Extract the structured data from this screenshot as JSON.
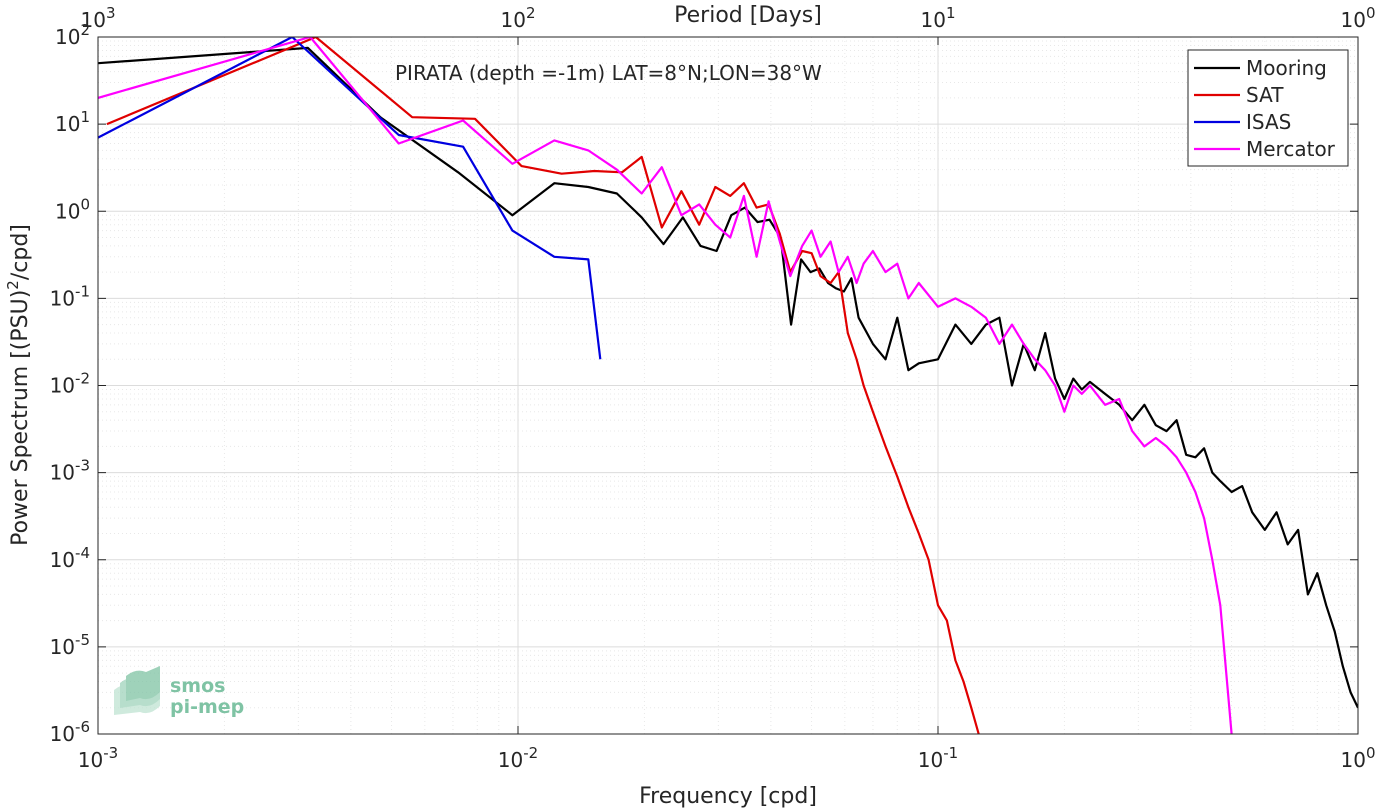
{
  "chart_data": {
    "type": "line",
    "title": "PIRATA (depth =-1m) LAT=8°N;LON=38°W",
    "xlabel": "Frequency [cpd]",
    "ylabel": "Power Spectrum [(PSU)²/cpd]",
    "ylabel_parts": {
      "pre": "Power Spectrum [(PSU)",
      "sup": "2",
      "post": "/cpd]"
    },
    "top_xlabel": "Period [Days]",
    "x_scale": "log",
    "y_scale": "log",
    "xlim": [
      0.001,
      1
    ],
    "ylim": [
      1e-06,
      100
    ],
    "grid": true,
    "legend_position": "top-right",
    "x_ticks": [
      {
        "value": 0.001,
        "base": "10",
        "exp": "-3"
      },
      {
        "value": 0.01,
        "base": "10",
        "exp": "-2"
      },
      {
        "value": 0.1,
        "base": "10",
        "exp": "-1"
      },
      {
        "value": 1,
        "base": "10",
        "exp": "0"
      }
    ],
    "y_ticks": [
      {
        "value": 1e-06,
        "base": "10",
        "exp": "-6"
      },
      {
        "value": 1e-05,
        "base": "10",
        "exp": "-5"
      },
      {
        "value": 0.0001,
        "base": "10",
        "exp": "-4"
      },
      {
        "value": 0.001,
        "base": "10",
        "exp": "-3"
      },
      {
        "value": 0.01,
        "base": "10",
        "exp": "-2"
      },
      {
        "value": 0.1,
        "base": "10",
        "exp": "-1"
      },
      {
        "value": 1,
        "base": "10",
        "exp": "0"
      },
      {
        "value": 10,
        "base": "10",
        "exp": "1"
      },
      {
        "value": 100,
        "base": "10",
        "exp": "2"
      }
    ],
    "top_ticks": [
      {
        "value": 0.001,
        "base": "10",
        "exp": "3"
      },
      {
        "value": 0.01,
        "base": "10",
        "exp": "2"
      },
      {
        "value": 0.1,
        "base": "10",
        "exp": "1"
      },
      {
        "value": 1,
        "base": "10",
        "exp": "0"
      }
    ],
    "series": [
      {
        "name": "Mooring",
        "color": "#000000",
        "x": [
          0.001,
          0.00316,
          0.0047,
          0.0072,
          0.0097,
          0.0122,
          0.0147,
          0.0172,
          0.0197,
          0.0222,
          0.0247,
          0.0272,
          0.0297,
          0.0322,
          0.0347,
          0.0372,
          0.0397,
          0.0422,
          0.0447,
          0.0472,
          0.0497,
          0.0522,
          0.0547,
          0.0572,
          0.0597,
          0.0622,
          0.0647,
          0.07,
          0.075,
          0.08,
          0.085,
          0.09,
          0.1,
          0.11,
          0.12,
          0.13,
          0.14,
          0.15,
          0.16,
          0.17,
          0.18,
          0.19,
          0.2,
          0.21,
          0.22,
          0.23,
          0.25,
          0.27,
          0.29,
          0.31,
          0.33,
          0.35,
          0.37,
          0.39,
          0.41,
          0.43,
          0.45,
          0.47,
          0.5,
          0.53,
          0.56,
          0.6,
          0.64,
          0.68,
          0.72,
          0.76,
          0.8,
          0.84,
          0.88,
          0.92,
          0.96,
          1.0
        ],
        "y": [
          50,
          75,
          12,
          2.8,
          0.9,
          2.1,
          1.9,
          1.6,
          0.85,
          0.42,
          0.85,
          0.4,
          0.35,
          0.9,
          1.1,
          0.75,
          0.8,
          0.5,
          0.05,
          0.28,
          0.2,
          0.22,
          0.15,
          0.13,
          0.12,
          0.17,
          0.06,
          0.03,
          0.02,
          0.06,
          0.015,
          0.018,
          0.02,
          0.05,
          0.03,
          0.05,
          0.06,
          0.01,
          0.03,
          0.015,
          0.04,
          0.012,
          0.007,
          0.012,
          0.009,
          0.011,
          0.008,
          0.006,
          0.004,
          0.006,
          0.0035,
          0.003,
          0.004,
          0.0016,
          0.0015,
          0.0019,
          0.001,
          0.0008,
          0.0006,
          0.0007,
          0.00035,
          0.00022,
          0.00035,
          0.00015,
          0.00022,
          4e-05,
          7e-05,
          3e-05,
          1.5e-05,
          6e-06,
          3e-06,
          2e-06
        ]
      },
      {
        "name": "SAT",
        "color": "#e00000",
        "x": [
          0.00105,
          0.0033,
          0.0056,
          0.0079,
          0.0102,
          0.0127,
          0.0152,
          0.0177,
          0.0197,
          0.022,
          0.0245,
          0.027,
          0.0295,
          0.032,
          0.0345,
          0.037,
          0.0395,
          0.042,
          0.0445,
          0.0475,
          0.05,
          0.0525,
          0.0555,
          0.058,
          0.061,
          0.064,
          0.0665,
          0.07,
          0.075,
          0.08,
          0.085,
          0.09,
          0.095,
          0.1,
          0.105,
          0.11,
          0.115,
          0.12,
          0.125
        ],
        "y": [
          10,
          100,
          12,
          11.5,
          3.3,
          2.7,
          2.9,
          2.8,
          4.2,
          0.65,
          1.7,
          0.7,
          1.9,
          1.5,
          2.1,
          1.1,
          1.2,
          0.55,
          0.2,
          0.35,
          0.33,
          0.18,
          0.15,
          0.2,
          0.04,
          0.02,
          0.01,
          0.005,
          0.002,
          0.0009,
          0.0004,
          0.0002,
          0.0001,
          3e-05,
          2e-05,
          7e-06,
          4e-06,
          2e-06,
          1e-06
        ]
      },
      {
        "name": "ISAS",
        "color": "#0000e0",
        "x": [
          0.001,
          0.0029,
          0.0052,
          0.0074,
          0.0097,
          0.0122,
          0.0147,
          0.0157
        ],
        "y": [
          7,
          100,
          7.5,
          5.5,
          0.6,
          0.3,
          0.28,
          0.02
        ]
      },
      {
        "name": "Mercator",
        "color": "#ff00ff",
        "x": [
          0.001,
          0.0032,
          0.0052,
          0.0074,
          0.0097,
          0.0122,
          0.0147,
          0.0172,
          0.0197,
          0.022,
          0.0245,
          0.027,
          0.0295,
          0.032,
          0.0345,
          0.037,
          0.0395,
          0.042,
          0.0445,
          0.0475,
          0.05,
          0.0525,
          0.0555,
          0.058,
          0.061,
          0.064,
          0.0665,
          0.07,
          0.075,
          0.08,
          0.085,
          0.09,
          0.1,
          0.11,
          0.12,
          0.13,
          0.14,
          0.15,
          0.16,
          0.17,
          0.18,
          0.19,
          0.2,
          0.21,
          0.22,
          0.23,
          0.25,
          0.27,
          0.29,
          0.31,
          0.33,
          0.35,
          0.37,
          0.39,
          0.41,
          0.43,
          0.45,
          0.47,
          0.5
        ],
        "y": [
          20,
          100,
          6,
          11,
          3.5,
          6.5,
          5,
          3,
          1.6,
          3.2,
          0.9,
          1.2,
          0.7,
          0.5,
          1.5,
          0.3,
          1.3,
          0.45,
          0.18,
          0.4,
          0.6,
          0.3,
          0.45,
          0.2,
          0.3,
          0.15,
          0.25,
          0.35,
          0.2,
          0.25,
          0.1,
          0.15,
          0.08,
          0.1,
          0.08,
          0.06,
          0.03,
          0.05,
          0.03,
          0.02,
          0.015,
          0.01,
          0.005,
          0.01,
          0.008,
          0.01,
          0.006,
          0.007,
          0.003,
          0.002,
          0.0025,
          0.002,
          0.0015,
          0.001,
          0.0006,
          0.0003,
          0.0001,
          3e-05,
          1e-06
        ]
      }
    ]
  },
  "watermark": {
    "line1": "smos",
    "line2": "pi-mep",
    "color": "#5daf8a"
  }
}
